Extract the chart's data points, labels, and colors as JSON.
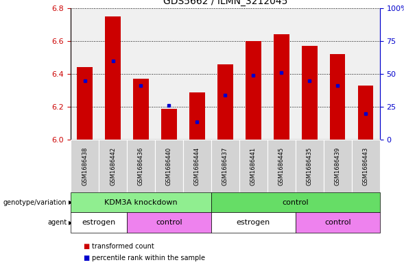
{
  "title": "GDS5662 / ILMN_3212045",
  "samples": [
    "GSM1686438",
    "GSM1686442",
    "GSM1686436",
    "GSM1686440",
    "GSM1686444",
    "GSM1686437",
    "GSM1686441",
    "GSM1686445",
    "GSM1686435",
    "GSM1686439",
    "GSM1686443"
  ],
  "bar_values": [
    6.44,
    6.75,
    6.37,
    6.19,
    6.29,
    6.46,
    6.6,
    6.64,
    6.57,
    6.52,
    6.33
  ],
  "percentile_values": [
    6.36,
    6.48,
    6.33,
    6.21,
    6.11,
    6.27,
    6.39,
    6.41,
    6.36,
    6.33,
    6.16
  ],
  "y_min": 6.0,
  "y_max": 6.8,
  "y_ticks": [
    6.0,
    6.2,
    6.4,
    6.6,
    6.8
  ],
  "y2_ticks": [
    0,
    25,
    50,
    75,
    100
  ],
  "bar_color": "#cc0000",
  "dot_color": "#0000cc",
  "bar_width": 0.55,
  "genotype_groups": [
    {
      "label": "KDM3A knockdown",
      "start": 0,
      "end": 5,
      "color": "#90ee90"
    },
    {
      "label": "control",
      "start": 5,
      "end": 11,
      "color": "#66dd66"
    }
  ],
  "agent_groups": [
    {
      "label": "estrogen",
      "start": 0,
      "end": 2,
      "color": "#ffffff"
    },
    {
      "label": "control",
      "start": 2,
      "end": 5,
      "color": "#ee82ee"
    },
    {
      "label": "estrogen",
      "start": 5,
      "end": 8,
      "color": "#ffffff"
    },
    {
      "label": "control",
      "start": 8,
      "end": 11,
      "color": "#ee82ee"
    }
  ],
  "axes_color_left": "#cc0000",
  "axes_color_right": "#0000cc",
  "sample_box_color": "#d3d3d3",
  "plot_bg": "#f0f0f0"
}
